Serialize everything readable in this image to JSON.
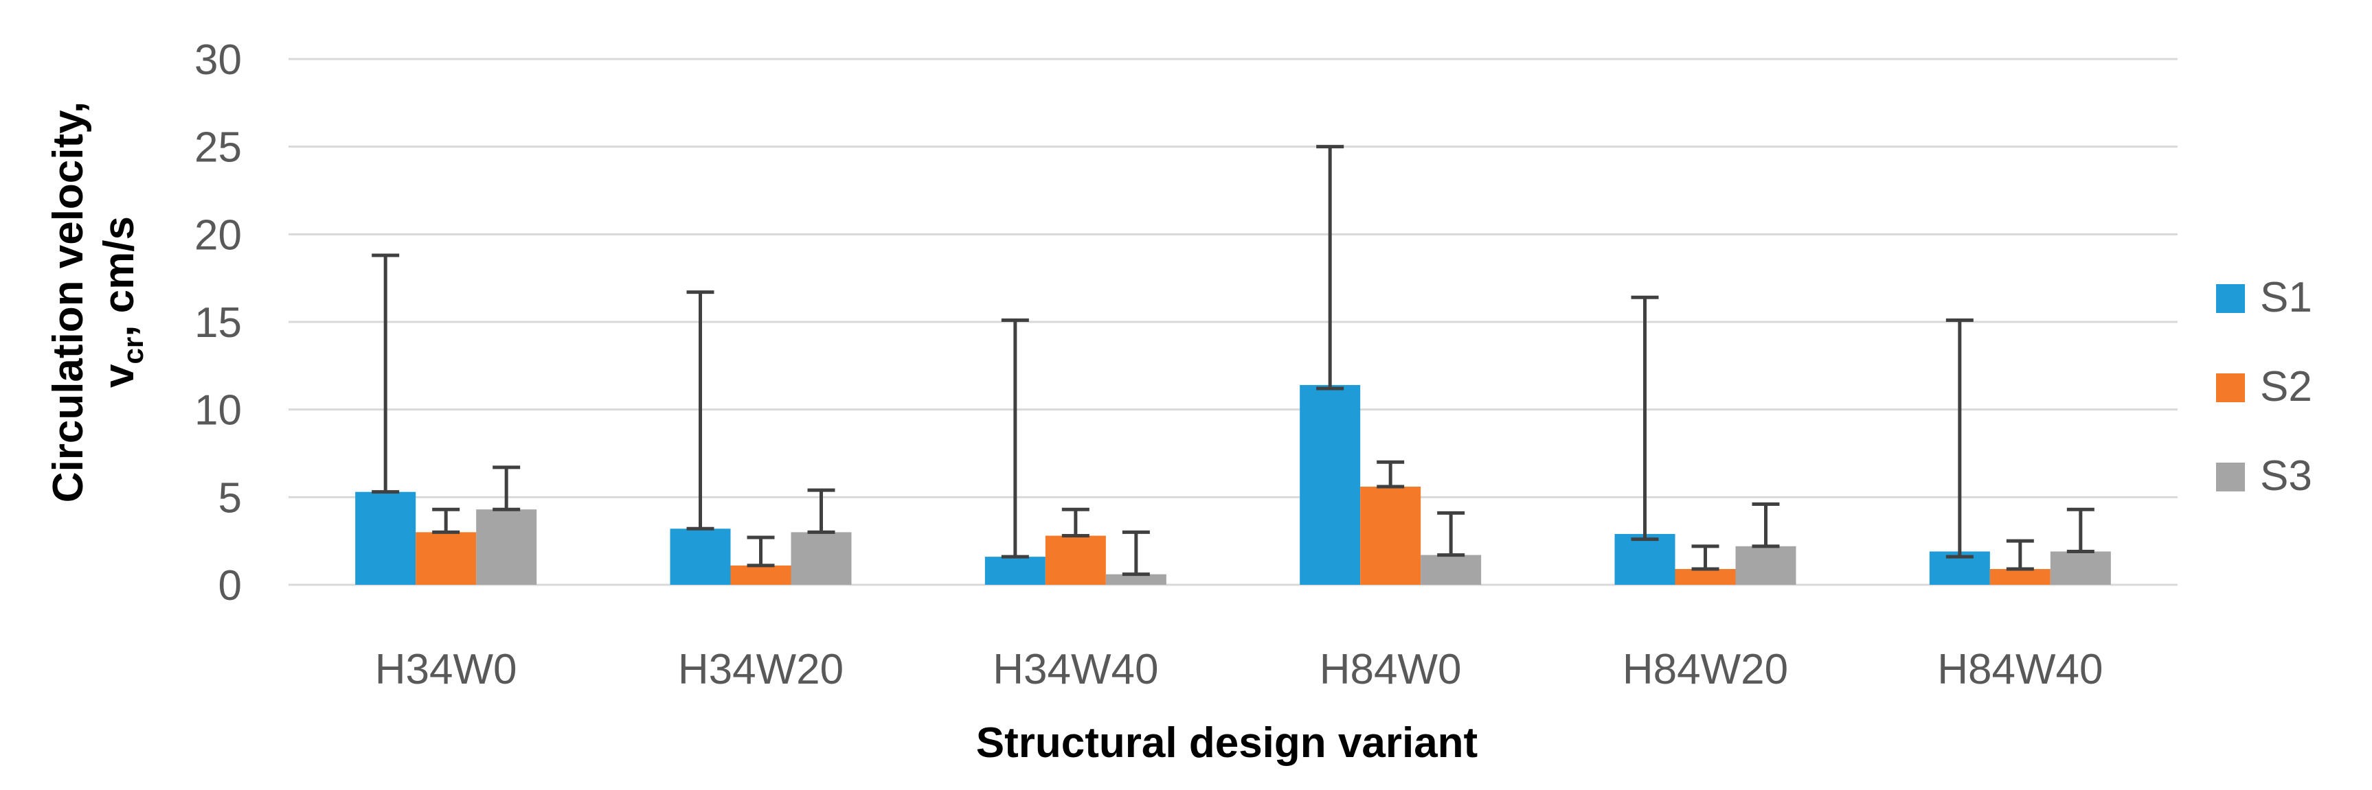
{
  "chart_data": {
    "type": "bar",
    "title": "",
    "xlabel": "Structural design variant",
    "ylabel": {
      "line1": "Circulation velocity,",
      "line2_prefix": "v",
      "line2_sub": "cr",
      "line2_suffix": ", cm/s"
    },
    "ylim": [
      0,
      30
    ],
    "yticks": [
      "0",
      "5",
      "10",
      "15",
      "20",
      "25",
      "30"
    ],
    "grid": true,
    "legend_position": "right",
    "categories": [
      "H34W0",
      "H34W20",
      "H34W40",
      "H84W0",
      "H84W20",
      "H84W40"
    ],
    "series": [
      {
        "name": "S1",
        "color": "#1f9bd7",
        "values": [
          5.3,
          3.2,
          1.6,
          11.4,
          2.9,
          1.9
        ],
        "error_low": [
          5.3,
          3.2,
          1.6,
          11.2,
          2.6,
          1.6
        ],
        "error_high": [
          18.8,
          16.7,
          15.1,
          25.0,
          16.4,
          15.1
        ]
      },
      {
        "name": "S2",
        "color": "#f47a2a",
        "values": [
          3.0,
          1.1,
          2.8,
          5.6,
          0.9,
          0.9
        ],
        "error_low": [
          3.0,
          1.1,
          2.8,
          5.6,
          0.9,
          0.9
        ],
        "error_high": [
          4.3,
          2.7,
          4.3,
          7.0,
          2.2,
          2.5
        ]
      },
      {
        "name": "S3",
        "color": "#a5a5a5",
        "values": [
          4.3,
          3.0,
          0.6,
          1.7,
          2.2,
          1.9
        ],
        "error_low": [
          4.3,
          3.0,
          0.6,
          1.7,
          2.2,
          1.9
        ],
        "error_high": [
          6.7,
          5.4,
          3.0,
          4.1,
          4.6,
          4.3
        ]
      }
    ]
  }
}
